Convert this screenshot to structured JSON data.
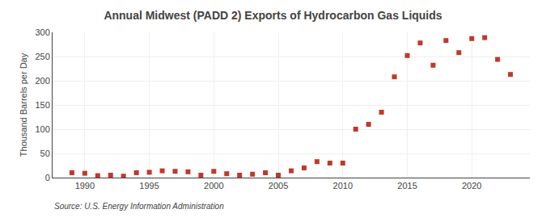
{
  "chart_data": {
    "type": "scatter",
    "title": "Annual Midwest (PADD 2) Exports of Hydrocarbon Gas Liquids",
    "ylabel": "Thousand Barrels per Day",
    "annotations": [
      "Source: U.S. Energy Information Administration"
    ],
    "x": [
      1989,
      1990,
      1991,
      1992,
      1993,
      1994,
      1995,
      1996,
      1997,
      1998,
      1999,
      2000,
      2001,
      2002,
      2003,
      2004,
      2005,
      2006,
      2007,
      2008,
      2009,
      2010,
      2011,
      2012,
      2013,
      2014,
      2015,
      2016,
      2017,
      2018,
      2019,
      2020,
      2021,
      2022,
      2023
    ],
    "values": [
      10,
      9,
      4,
      5,
      3,
      10,
      11,
      14,
      13,
      12,
      5,
      13,
      8,
      5,
      7,
      10,
      5,
      14,
      20,
      33,
      30,
      30,
      100,
      110,
      135,
      208,
      252,
      278,
      232,
      283,
      258,
      287,
      289,
      244,
      213
    ],
    "color": "#c0392b",
    "marker": "square",
    "xlim": [
      1987.5,
      2024.5
    ],
    "ylim": [
      0,
      300
    ],
    "xticks": [
      1990,
      1995,
      2000,
      2005,
      2010,
      2015,
      2020
    ],
    "yticks": [
      0,
      50,
      100,
      150,
      200,
      250,
      300
    ],
    "grid": true
  }
}
